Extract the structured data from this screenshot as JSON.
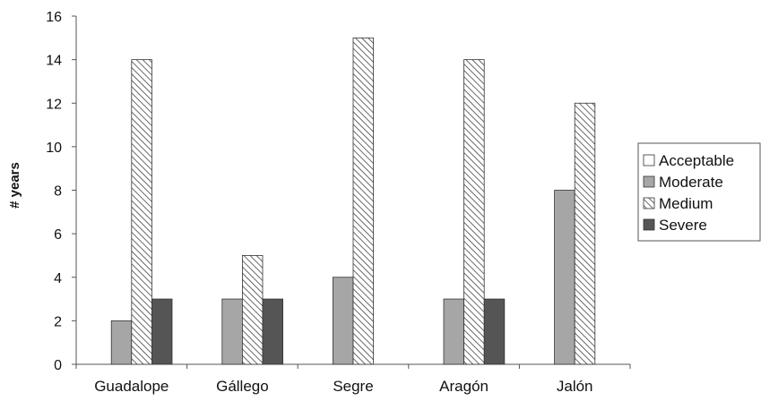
{
  "chart_data": {
    "type": "bar",
    "categories": [
      "Guadalope",
      "Gállego",
      "Segre",
      "Aragón",
      "Jalón"
    ],
    "series": [
      {
        "name": "Acceptable",
        "values": [
          0,
          0,
          0,
          0,
          0
        ],
        "pattern": "none",
        "color": "#ffffff"
      },
      {
        "name": "Moderate",
        "values": [
          2,
          3,
          4,
          3,
          8
        ],
        "pattern": "solid",
        "color": "#a6a6a6"
      },
      {
        "name": "Medium",
        "values": [
          14,
          5,
          15,
          14,
          12
        ],
        "pattern": "diagonal-hatch",
        "color": "#ffffff"
      },
      {
        "name": "Severe",
        "values": [
          3,
          3,
          0,
          3,
          0
        ],
        "pattern": "solid",
        "color": "#555555"
      }
    ],
    "title": "",
    "xlabel": "",
    "ylabel": "# years",
    "ylim": [
      0,
      16
    ],
    "yticks": [
      0,
      2,
      4,
      6,
      8,
      10,
      12,
      14,
      16
    ],
    "grid": false,
    "legend_position": "right"
  }
}
